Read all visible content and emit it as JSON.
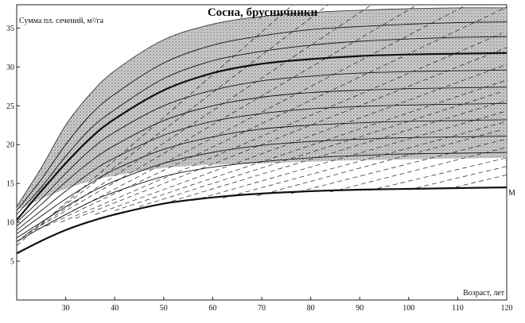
{
  "chart_data": {
    "type": "line",
    "title": "Сосна, брусничники",
    "xlabel": "Возраст, лет",
    "ylabel": "Сумма пл. сечений, м²/га",
    "xlim": [
      20,
      120
    ],
    "ylim": [
      0,
      38
    ],
    "x_ticks": [
      30,
      40,
      50,
      60,
      70,
      80,
      90,
      100,
      110,
      120
    ],
    "y_ticks": [
      5,
      10,
      15,
      20,
      25,
      30,
      35
    ],
    "grid": false,
    "shaded_band": {
      "description": "shaded zone between envelopes",
      "upper": {
        "x": [
          20,
          25,
          30,
          35,
          40,
          50,
          60,
          70,
          80,
          90,
          100,
          110,
          120
        ],
        "y": [
          12,
          17,
          22.5,
          26.5,
          29.5,
          33.5,
          35.5,
          36.5,
          37,
          37.3,
          37.5,
          37.6,
          37.6
        ]
      },
      "lower": {
        "x": [
          20,
          25,
          30,
          35,
          40,
          50,
          60,
          70,
          80,
          90,
          100,
          110,
          120
        ],
        "y": [
          11.5,
          13,
          14.3,
          15.3,
          16,
          17,
          17.4,
          17.6,
          17.8,
          18,
          18.1,
          18.2,
          18.3
        ]
      }
    },
    "series": [
      {
        "role": "solid",
        "x": [
          20,
          25,
          30,
          35,
          40,
          50,
          60,
          70,
          80,
          90,
          100,
          110,
          120
        ],
        "y": [
          11.5,
          15.5,
          20,
          23.8,
          26.5,
          30.5,
          32.8,
          34,
          34.8,
          35.2,
          35.5,
          35.7,
          35.8
        ]
      },
      {
        "role": "solid",
        "x": [
          20,
          25,
          30,
          35,
          40,
          50,
          60,
          70,
          80,
          90,
          100,
          110,
          120
        ],
        "y": [
          11,
          14.5,
          18.5,
          22,
          24.5,
          28.5,
          30.8,
          32,
          32.8,
          33.3,
          33.6,
          33.8,
          33.9
        ]
      },
      {
        "role": "bold",
        "x": [
          20,
          25,
          30,
          35,
          40,
          50,
          60,
          70,
          80,
          90,
          100,
          110,
          120
        ],
        "y": [
          10.3,
          14,
          17.6,
          20.8,
          23.3,
          27,
          29.2,
          30.4,
          31,
          31.4,
          31.6,
          31.7,
          31.8
        ]
      },
      {
        "role": "solid",
        "x": [
          20,
          25,
          30,
          35,
          40,
          50,
          60,
          70,
          80,
          90,
          100,
          110,
          120
        ],
        "y": [
          10,
          13,
          16.3,
          19.3,
          21.6,
          25,
          27,
          28.2,
          28.8,
          29.2,
          29.4,
          29.5,
          29.6
        ]
      },
      {
        "role": "solid",
        "x": [
          20,
          25,
          30,
          35,
          40,
          50,
          60,
          70,
          80,
          90,
          100,
          110,
          120
        ],
        "y": [
          9.5,
          12.3,
          15.2,
          17.8,
          19.9,
          23.1,
          25,
          26.1,
          26.7,
          27,
          27.2,
          27.3,
          27.4
        ]
      },
      {
        "role": "solid",
        "x": [
          20,
          25,
          30,
          35,
          40,
          50,
          60,
          70,
          80,
          90,
          100,
          110,
          120
        ],
        "y": [
          9,
          11.5,
          14,
          16.4,
          18.3,
          21.2,
          23,
          24,
          24.6,
          24.9,
          25.1,
          25.2,
          25.3
        ]
      },
      {
        "role": "solid",
        "x": [
          20,
          25,
          30,
          35,
          40,
          50,
          60,
          70,
          80,
          90,
          100,
          110,
          120
        ],
        "y": [
          8.5,
          10.8,
          13,
          15,
          16.8,
          19.4,
          21,
          22,
          22.5,
          22.8,
          23,
          23.1,
          23.2
        ]
      },
      {
        "role": "solid",
        "x": [
          20,
          25,
          30,
          35,
          40,
          50,
          60,
          70,
          80,
          90,
          100,
          110,
          120
        ],
        "y": [
          8,
          10,
          12,
          13.8,
          15.3,
          17.6,
          19,
          19.9,
          20.4,
          20.7,
          20.9,
          21,
          21.1
        ]
      },
      {
        "role": "solid",
        "x": [
          20,
          25,
          30,
          35,
          40,
          50,
          60,
          70,
          80,
          90,
          100,
          110,
          120
        ],
        "y": [
          7.5,
          9.3,
          11,
          12.6,
          13.9,
          15.9,
          17.1,
          17.8,
          18.3,
          18.6,
          18.8,
          18.9,
          19
        ]
      },
      {
        "role": "bold",
        "name": "M",
        "x": [
          20,
          25,
          30,
          35,
          40,
          50,
          60,
          70,
          80,
          90,
          100,
          110,
          120
        ],
        "y": [
          6,
          7.6,
          9,
          10.1,
          11,
          12.4,
          13.2,
          13.7,
          14,
          14.2,
          14.3,
          14.4,
          14.5
        ]
      }
    ],
    "dashed_families": [
      {
        "x0": 20,
        "y0": 7.0,
        "slope": 0.55
      },
      {
        "x0": 20,
        "y0": 7.5,
        "slope": 0.48
      },
      {
        "x0": 21,
        "y0": 8.0,
        "slope": 0.42
      },
      {
        "x0": 22,
        "y0": 8.5,
        "slope": 0.37
      },
      {
        "x0": 24,
        "y0": 9.0,
        "slope": 0.33
      },
      {
        "x0": 26,
        "y0": 9.5,
        "slope": 0.3
      },
      {
        "x0": 29,
        "y0": 10.0,
        "slope": 0.27
      },
      {
        "x0": 32,
        "y0": 10.5,
        "slope": 0.25
      },
      {
        "x0": 36,
        "y0": 11.0,
        "slope": 0.23
      },
      {
        "x0": 40,
        "y0": 11.5,
        "slope": 0.21
      },
      {
        "x0": 45,
        "y0": 12.0,
        "slope": 0.2
      },
      {
        "x0": 50,
        "y0": 12.4,
        "slope": 0.19
      },
      {
        "x0": 56,
        "y0": 12.8,
        "slope": 0.18
      },
      {
        "x0": 62,
        "y0": 13.1,
        "slope": 0.17
      },
      {
        "x0": 69,
        "y0": 13.4,
        "slope": 0.17
      },
      {
        "x0": 76,
        "y0": 13.7,
        "slope": 0.16
      },
      {
        "x0": 84,
        "y0": 13.9,
        "slope": 0.16
      },
      {
        "x0": 92,
        "y0": 14.1,
        "slope": 0.15
      },
      {
        "x0": 100,
        "y0": 14.2,
        "slope": 0.15
      },
      {
        "x0": 108,
        "y0": 14.3,
        "slope": 0.15
      }
    ],
    "end_label": "M"
  }
}
